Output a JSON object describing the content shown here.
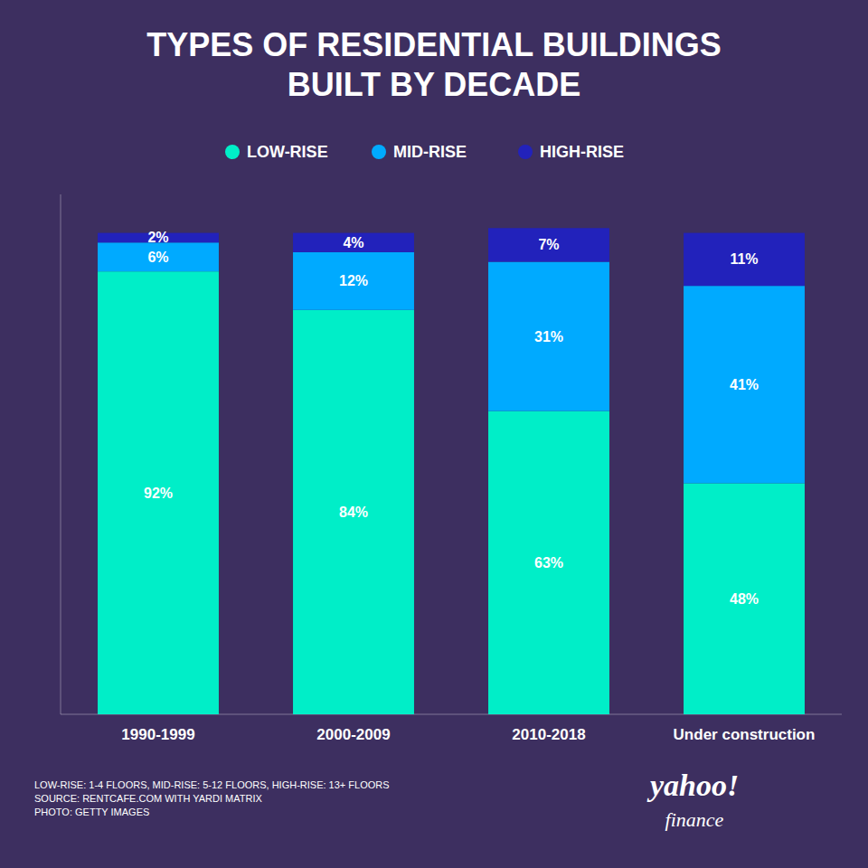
{
  "chart_data": {
    "type": "bar",
    "title": "TYPES OF RESIDENTIAL BUILDINGS\nBUILT BY DECADE",
    "categories": [
      "1990-1999",
      "2000-2009",
      "2010-2018",
      "Under construction"
    ],
    "series": [
      {
        "name": "LOW-RISE",
        "color": "#00EEC8",
        "values": [
          92,
          84,
          63,
          48
        ],
        "value_labels": [
          "92%",
          "84%",
          "63%",
          "48%"
        ]
      },
      {
        "name": "MID-RISE",
        "color": "#00AAFF",
        "values": [
          6,
          12,
          31,
          41
        ],
        "value_labels": [
          "6%",
          "12%",
          "31%",
          "41%"
        ]
      },
      {
        "name": "HIGH-RISE",
        "color": "#2222BB",
        "values": [
          2,
          4,
          7,
          11
        ],
        "value_labels": [
          "2%",
          "4%",
          "7%",
          "11%"
        ]
      }
    ],
    "stacked": true,
    "data_labels": true,
    "ylim": [
      0,
      108
    ],
    "yticks": [],
    "tick_labels": "x",
    "grid": false,
    "legend": "top",
    "annotations": [
      "LOW-RISE: 1-4 FLOORS, MID-RISE: 5-12 FLOORS, HIGH-RISE: 13+ FLOORS\nSOURCE: RENTCAFE.COM WITH YARDI MATRIX\nPHOTO: GETTY IMAGES",
      "yahoo!",
      "finance"
    ]
  }
}
